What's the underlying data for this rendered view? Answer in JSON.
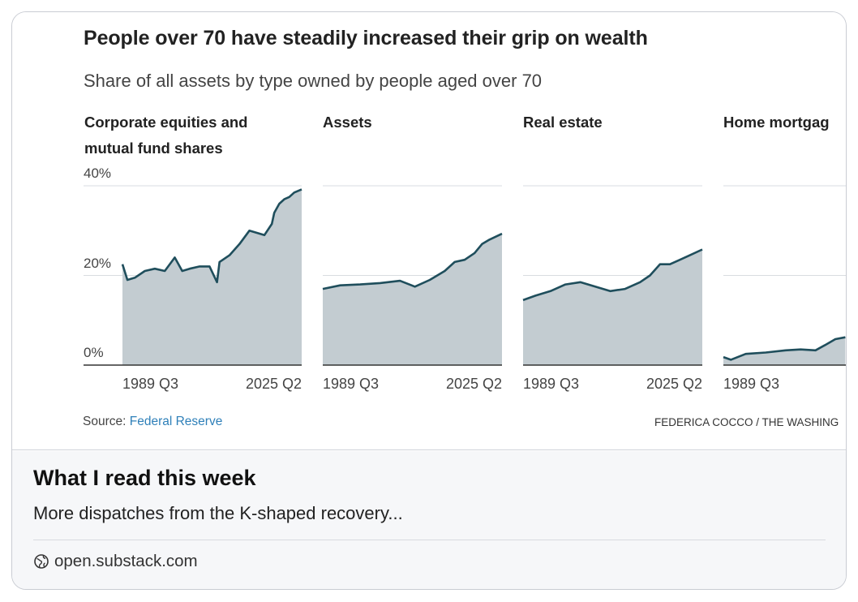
{
  "card": {
    "post_title": "What I read this week",
    "post_description": "More dispatches from the K-shaped recovery...",
    "domain": "open.substack.com",
    "domain_icon": "globe-icon"
  },
  "chart_data": {
    "type": "area",
    "title": "People over 70 have steadily increased their grip on wealth",
    "subtitle": "Share of all assets by type owned by people aged over 70",
    "y_ticks": [
      "40%",
      "20%",
      "0%"
    ],
    "ylim": [
      0,
      40
    ],
    "x_ticks": [
      "1989 Q3",
      "2025 Q2"
    ],
    "source_label": "Source: ",
    "source_link": "Federal Reserve",
    "credit": "FEDERICA COCCO / THE WASHING",
    "fill_color": "#c3ccd1",
    "line_color": "#1f4e5c",
    "panels": [
      {
        "title_lines": [
          "Corporate equities and",
          "mutual fund shares"
        ],
        "x": [
          1989.5,
          1990.5,
          1992,
          1994,
          1996,
          1998,
          2000,
          2001.5,
          2003,
          2005,
          2007,
          2008.5,
          2009,
          2011,
          2013,
          2015,
          2016.5,
          2018,
          2019.5,
          2020,
          2021,
          2022,
          2023,
          2024,
          2025.5
        ],
        "values": [
          22.5,
          19,
          19.5,
          21,
          21.5,
          21,
          24,
          21,
          21.5,
          22,
          22,
          18.5,
          23,
          24.5,
          27,
          30,
          29.5,
          29,
          31.5,
          34,
          36,
          37,
          37.5,
          38.5,
          39.2
        ]
      },
      {
        "title_lines": [
          "Assets"
        ],
        "x": [
          1989.5,
          1993,
          1997,
          2001,
          2005,
          2008,
          2011,
          2014,
          2016,
          2018,
          2020,
          2021.5,
          2023,
          2025.5
        ],
        "values": [
          17,
          17.8,
          18,
          18.3,
          18.8,
          17.5,
          19,
          21,
          23,
          23.5,
          25,
          27,
          28,
          29.3
        ]
      },
      {
        "title_lines": [
          "Real estate"
        ],
        "x": [
          1989.5,
          1992,
          1995,
          1998,
          2001,
          2004,
          2007,
          2010,
          2013,
          2015,
          2017,
          2019,
          2021,
          2023,
          2025.5
        ],
        "values": [
          14.5,
          15.5,
          16.5,
          18,
          18.5,
          17.5,
          16.5,
          17,
          18.5,
          20,
          22.5,
          22.5,
          23.5,
          24.5,
          25.8
        ]
      },
      {
        "title_lines": [
          "Home mortgag"
        ],
        "x": [
          1989.5,
          1991,
          1994,
          1998,
          2002,
          2005,
          2008,
          2010,
          2012,
          2014
        ],
        "values": [
          1.8,
          1.2,
          2.5,
          2.8,
          3.3,
          3.5,
          3.3,
          4.5,
          5.8,
          6.2
        ]
      }
    ]
  }
}
